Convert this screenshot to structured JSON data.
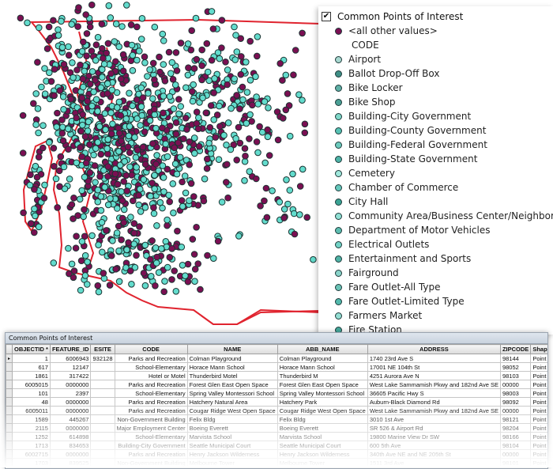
{
  "map": {
    "colors": {
      "boundary": "#e0242f",
      "poi_dark": "#7a0f52",
      "poi_light": "#63dccd",
      "poi_outline": "#1b3533"
    }
  },
  "legend": {
    "layer_name": "Common Points of Interest",
    "checked": true,
    "all_other_values": "<all other values>",
    "field_heading": "CODE",
    "items": [
      "Airport",
      "Ballot Drop-Off Box",
      "Bike Locker",
      "Bike Shop",
      "Building-City Government",
      "Building-County Government",
      "Building-Federal Government",
      "Building-State Government",
      "Cemetery",
      "Chamber of Commerce",
      "City Hall",
      "Community Area/Business Center/Neighborh",
      "Department of Motor Vehicles",
      "Electrical Outlets",
      "Entertainment and Sports",
      "Fairground",
      "Fare Outlet-All Type",
      "Fare Outlet-Limited Type",
      "Farmers Market",
      "Fire Station"
    ],
    "item_colors": [
      "#a8d8d0",
      "#3f8f86",
      "#5fb0a6",
      "#4aa095",
      "#7fd8c9",
      "#56c2b4",
      "#6ccbbd",
      "#4db3a7",
      "#a0e8dc",
      "#66c9bd",
      "#3aa394",
      "#8fe0d4",
      "#5dbdb0",
      "#72d3c6",
      "#4fb2a5",
      "#8ad4ca",
      "#6bc4b7",
      "#52b9ac",
      "#93ded3",
      "#45a99c"
    ]
  },
  "table": {
    "title": "Common Points of Interest",
    "columns": [
      "OBJECTID *",
      "FEATURE_ID",
      "ESITE",
      "CODE",
      "NAME",
      "ABB_NAME",
      "ADDRESS",
      "ZIPCODE",
      "Shape *"
    ],
    "rows": [
      [
        "1",
        "6006943",
        "932128",
        "Parks and Recreation",
        "Colman Playground",
        "Colman Playground",
        "1740 23rd Ave S",
        "98144",
        "Point"
      ],
      [
        "617",
        "12147",
        "",
        "School-Elementary",
        "Horace Mann School",
        "Horace Mann School",
        "17001 NE 104th St",
        "98052",
        "Point"
      ],
      [
        "1861",
        "317422",
        "",
        "Hotel or Motel",
        "Thunderbird Motel",
        "Thunderbird M",
        "4251 Aurora Ave N",
        "98103",
        "Point"
      ],
      [
        "6005015",
        "0000000",
        "",
        "Parks and Recreation",
        "Forest Glen East Open Space",
        "Forest Glen East Open Space",
        "West Lake Sammamish Pkwy and 182nd Ave SE",
        "00000",
        "Point"
      ],
      [
        "101",
        "2397",
        "",
        "School-Elementary",
        "Spring Valley Montessori School",
        "Spring Valley Montessori School",
        "36605 Pacific Hwy S",
        "98003",
        "Point"
      ],
      [
        "48",
        "0000000",
        "",
        "Parks and Recreation",
        "Hatchery Natural Area",
        "Hatchery Park",
        "Auburn-Black Diamond Rd",
        "98092",
        "Point"
      ],
      [
        "6005011",
        "0000000",
        "",
        "Parks and Recreation",
        "Cougar Ridge West Open Space",
        "Cougar Ridge West Open Space",
        "West Lake Sammamish Pkwy and 182nd Ave SE",
        "00000",
        "Point"
      ],
      [
        "1589",
        "445267",
        "",
        "Non-Government Building",
        "Felix Bldg",
        "Felix Bldg",
        "3010 1st Ave",
        "98121",
        "Point"
      ],
      [
        "2115",
        "0000000",
        "",
        "Major Employment Center",
        "Boeing Everett",
        "Boeing Everett",
        "SR 526 & Airport Rd",
        "98204",
        "Point"
      ],
      [
        "1252",
        "614898",
        "",
        "School-Elementary",
        "Marvista School",
        "Marvista School",
        "19800 Marine View Dr SW",
        "98166",
        "Point"
      ],
      [
        "1713",
        "834653",
        "",
        "Building-City Government",
        "Seattle Municipal Court",
        "Seattle Municipal Court",
        "600 5th Ave",
        "98104",
        "Point"
      ],
      [
        "6002715",
        "0000000",
        "",
        "Parks and Recreation",
        "Henry Jackson Wilderness",
        "Henry Jackson Wilderness",
        "340th Ave NE and NE 205th St",
        "00000",
        "Point"
      ],
      [
        "1703",
        "839525",
        "",
        "Non-Government Building",
        "Melbourne Tower",
        "Melbourne Tower",
        "1511 3rd Ave",
        "98101",
        "Point"
      ]
    ]
  }
}
